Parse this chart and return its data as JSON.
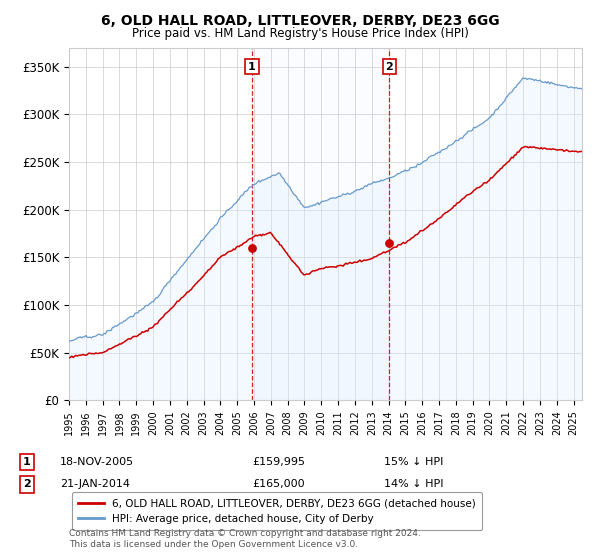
{
  "title": "6, OLD HALL ROAD, LITTLEOVER, DERBY, DE23 6GG",
  "subtitle": "Price paid vs. HM Land Registry's House Price Index (HPI)",
  "ylim": [
    0,
    370000
  ],
  "yticks": [
    0,
    50000,
    100000,
    150000,
    200000,
    250000,
    300000,
    350000
  ],
  "ytick_labels": [
    "£0",
    "£50K",
    "£100K",
    "£150K",
    "£200K",
    "£250K",
    "£300K",
    "£350K"
  ],
  "xlim_start": 1995.0,
  "xlim_end": 2025.5,
  "sale1_date": 2005.88,
  "sale1_price": 159995,
  "sale1_label": "1",
  "sale1_text": "18-NOV-2005",
  "sale1_price_text": "£159,995",
  "sale1_hpi_text": "15% ↓ HPI",
  "sale2_date": 2014.05,
  "sale2_price": 165000,
  "sale2_label": "2",
  "sale2_text": "21-JAN-2014",
  "sale2_price_text": "£165,000",
  "sale2_hpi_text": "14% ↓ HPI",
  "property_color": "#cc0000",
  "hpi_color": "#6699cc",
  "hpi_fill_color": "#ddeeff",
  "legend_property": "6, OLD HALL ROAD, LITTLEOVER, DERBY, DE23 6GG (detached house)",
  "legend_hpi": "HPI: Average price, detached house, City of Derby",
  "footer": "Contains HM Land Registry data © Crown copyright and database right 2024.\nThis data is licensed under the Open Government Licence v3.0.",
  "background_color": "#ffffff",
  "grid_color": "#cccccc"
}
